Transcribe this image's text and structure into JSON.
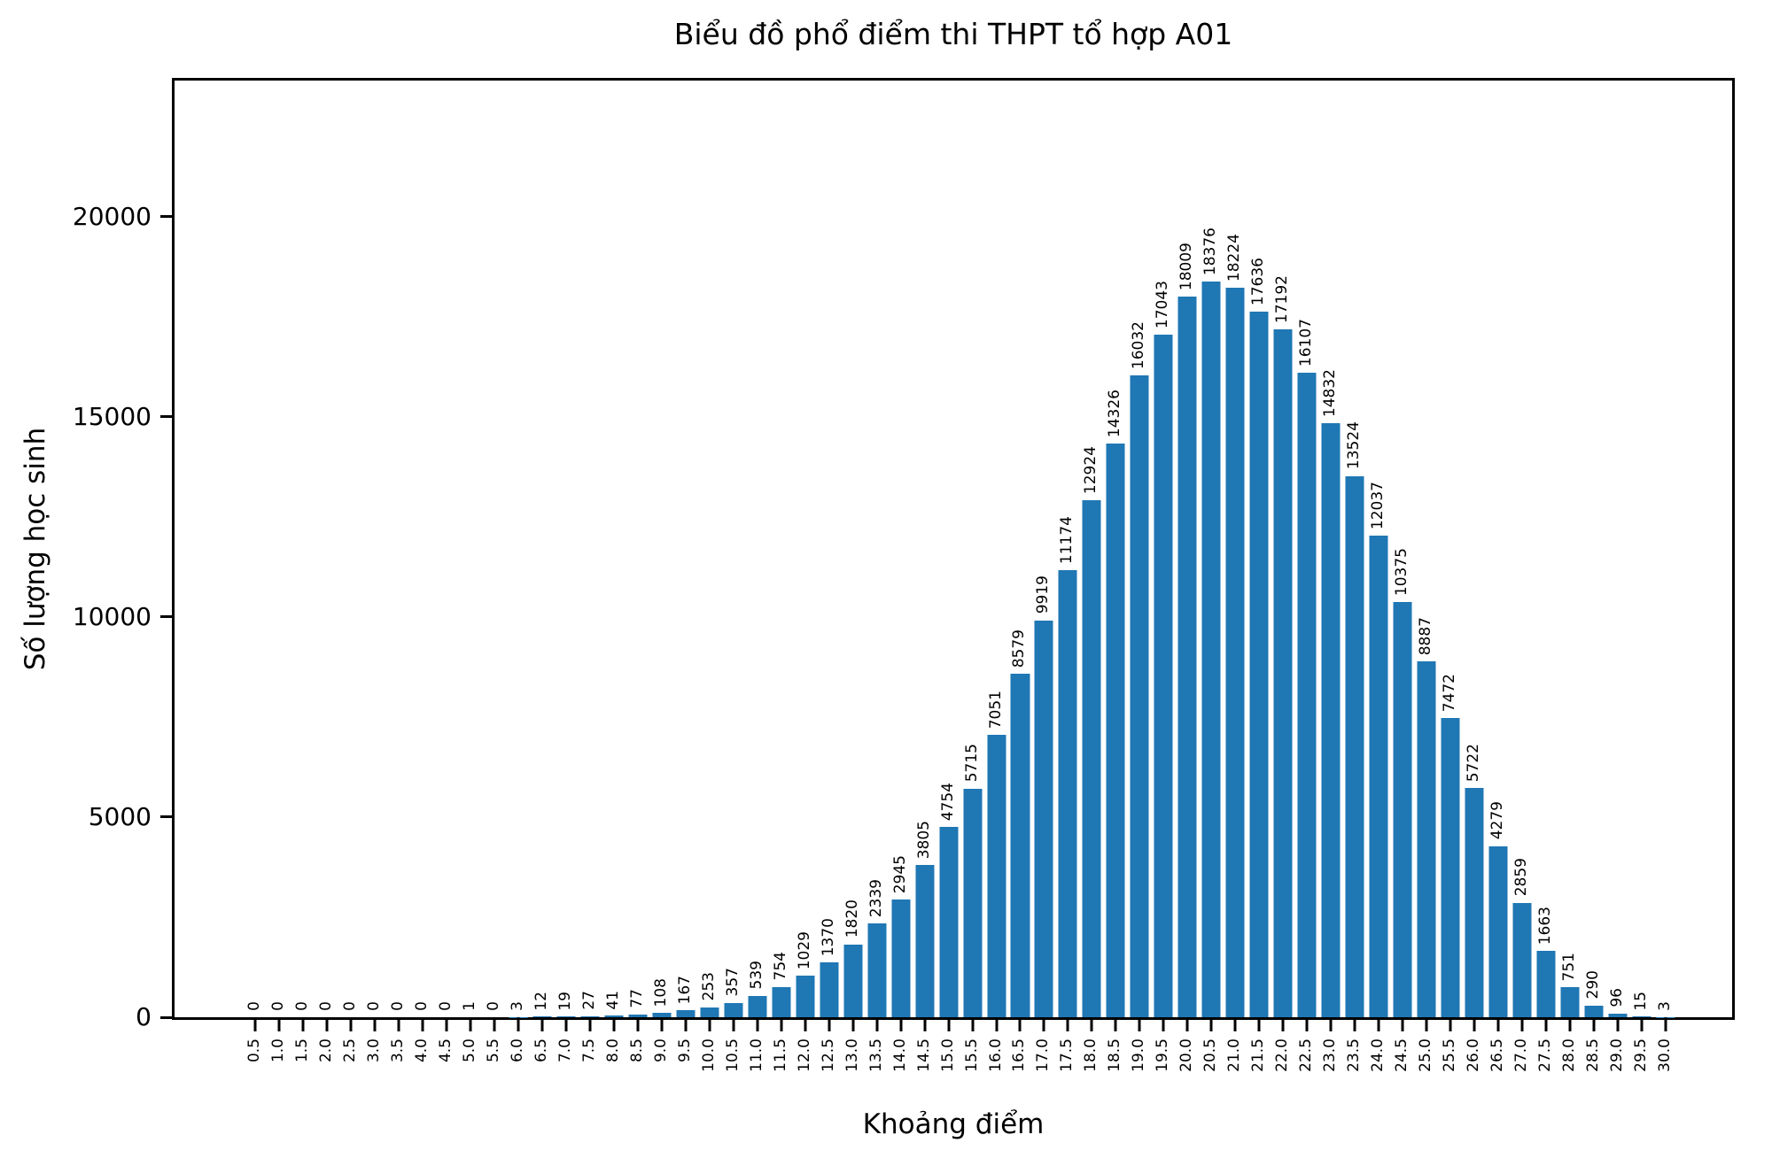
{
  "chart_data": {
    "type": "bar",
    "title": "Biểu đồ phổ điểm thi THPT tổ hợp A01",
    "xlabel": "Khoảng điểm",
    "ylabel": "Số lượng học sinh",
    "categories": [
      "0.5",
      "1.0",
      "1.5",
      "2.0",
      "2.5",
      "3.0",
      "3.5",
      "4.0",
      "4.5",
      "5.0",
      "5.5",
      "6.0",
      "6.5",
      "7.0",
      "7.5",
      "8.0",
      "8.5",
      "9.0",
      "9.5",
      "10.0",
      "10.5",
      "11.0",
      "11.5",
      "12.0",
      "12.5",
      "13.0",
      "13.5",
      "14.0",
      "14.5",
      "15.0",
      "15.5",
      "16.0",
      "16.5",
      "17.0",
      "17.5",
      "18.0",
      "18.5",
      "19.0",
      "19.5",
      "20.0",
      "20.5",
      "21.0",
      "21.5",
      "22.0",
      "22.5",
      "23.0",
      "23.5",
      "24.0",
      "24.5",
      "25.0",
      "25.5",
      "26.0",
      "26.5",
      "27.0",
      "27.5",
      "28.0",
      "28.5",
      "29.0",
      "29.5",
      "30.0"
    ],
    "values": [
      0,
      0,
      0,
      0,
      0,
      0,
      0,
      0,
      0,
      1,
      0,
      3,
      12,
      19,
      27,
      41,
      77,
      108,
      167,
      253,
      357,
      539,
      754,
      1029,
      1370,
      1820,
      2339,
      2945,
      3805,
      4754,
      5715,
      7051,
      8579,
      9919,
      11174,
      12924,
      14326,
      16032,
      17043,
      18009,
      18376,
      18224,
      17636,
      17192,
      16107,
      14832,
      13524,
      12037,
      10375,
      8887,
      7472,
      5722,
      4279,
      2859,
      1663,
      751,
      290,
      96,
      15,
      3
    ],
    "yticks": [
      0,
      5000,
      10000,
      15000,
      20000
    ],
    "ylim": [
      0,
      23400
    ],
    "bar_color": "#1f77b4",
    "axis_color": "#000000",
    "grid": false,
    "bar_labels_rotation": 90,
    "xtick_rotation": 90,
    "legend": null
  }
}
